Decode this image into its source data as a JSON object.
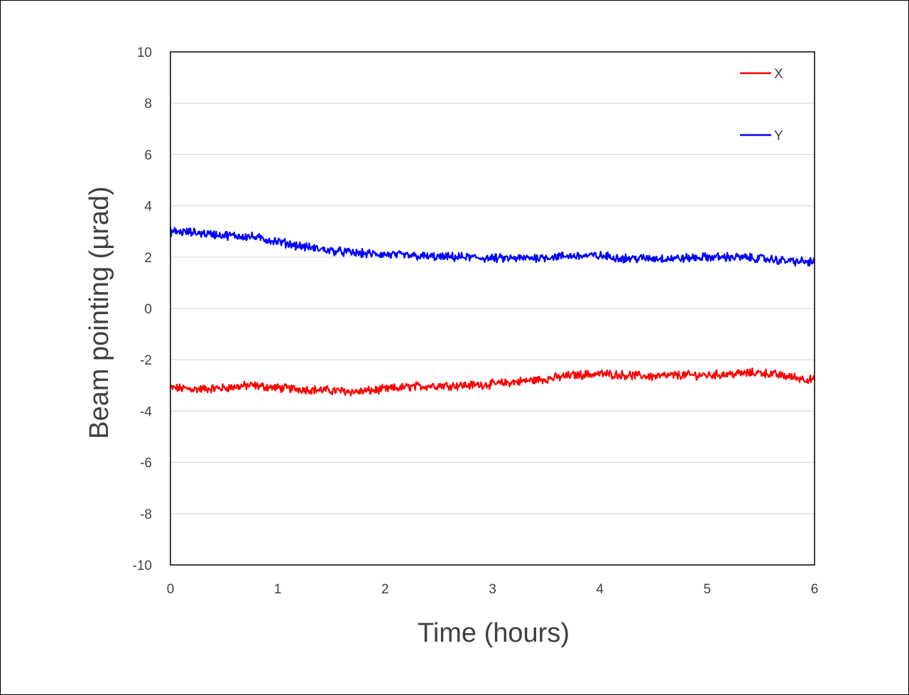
{
  "chart_data": {
    "type": "line",
    "title": "",
    "xlabel": "Time (hours)",
    "ylabel": "Beam pointing  (µrad)",
    "xlim": [
      0,
      6
    ],
    "ylim": [
      -10,
      10
    ],
    "xticks": [
      0,
      1,
      2,
      3,
      4,
      5,
      6
    ],
    "yticks": [
      10,
      8,
      6,
      4,
      2,
      0,
      -2,
      -4,
      -6,
      -8,
      -10
    ],
    "grid": "horizontal",
    "legend_position": "top-right",
    "series": [
      {
        "name": "X",
        "color": "#ff0000",
        "x": [
          0,
          0.25,
          0.5,
          0.75,
          1.0,
          1.25,
          1.5,
          1.75,
          2.0,
          2.25,
          2.5,
          2.75,
          3.0,
          3.25,
          3.5,
          3.75,
          4.0,
          4.25,
          4.5,
          4.75,
          5.0,
          5.25,
          5.5,
          5.75,
          6.0
        ],
        "y": [
          -3.1,
          -3.15,
          -3.1,
          -3.0,
          -3.1,
          -3.15,
          -3.2,
          -3.25,
          -3.15,
          -3.05,
          -3.0,
          -3.0,
          -2.95,
          -2.85,
          -2.75,
          -2.6,
          -2.55,
          -2.6,
          -2.65,
          -2.6,
          -2.6,
          -2.55,
          -2.5,
          -2.65,
          -2.8
        ]
      },
      {
        "name": "Y",
        "color": "#0000ff",
        "x": [
          0,
          0.25,
          0.5,
          0.75,
          1.0,
          1.25,
          1.5,
          1.75,
          2.0,
          2.25,
          2.5,
          2.75,
          3.0,
          3.25,
          3.5,
          3.75,
          4.0,
          4.25,
          4.5,
          4.75,
          5.0,
          5.25,
          5.5,
          5.75,
          6.0
        ],
        "y": [
          3.0,
          2.95,
          2.85,
          2.8,
          2.6,
          2.4,
          2.25,
          2.15,
          2.1,
          2.05,
          2.0,
          2.0,
          1.95,
          1.95,
          2.0,
          2.05,
          2.05,
          1.95,
          1.95,
          1.95,
          2.0,
          2.0,
          1.95,
          1.85,
          1.8
        ]
      }
    ]
  }
}
